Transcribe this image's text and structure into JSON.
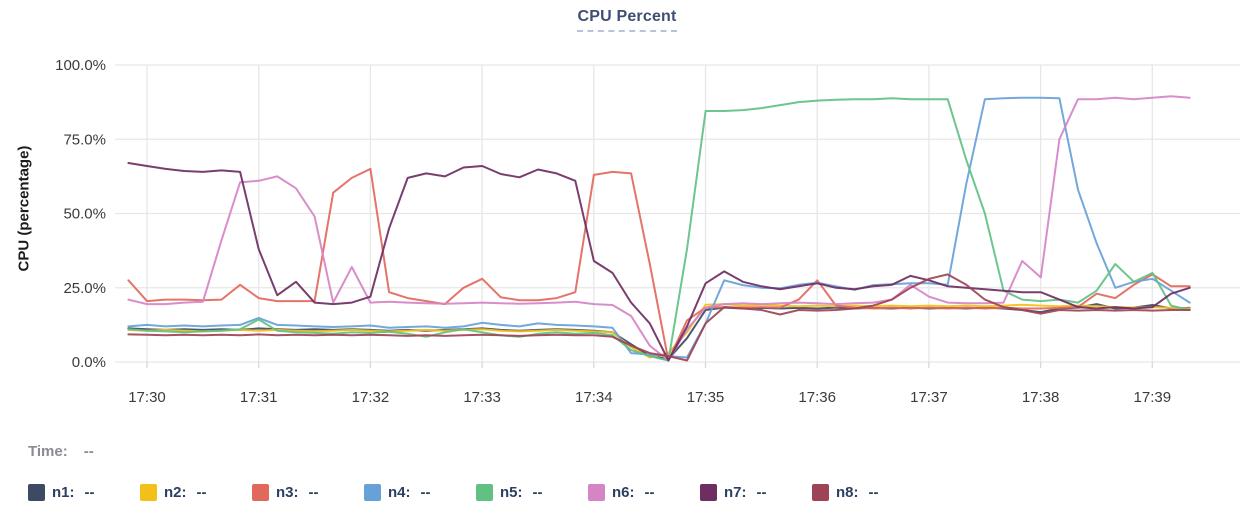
{
  "header": {
    "title": "CPU Percent"
  },
  "time_row": {
    "label": "Time:",
    "value": "--"
  },
  "legend": [
    {
      "id": "n1",
      "label": "n1:",
      "value": "--",
      "color": "#3d4a63"
    },
    {
      "id": "n2",
      "label": "n2:",
      "value": "--",
      "color": "#f2c019"
    },
    {
      "id": "n3",
      "label": "n3:",
      "value": "--",
      "color": "#e2685c"
    },
    {
      "id": "n4",
      "label": "n4:",
      "value": "--",
      "color": "#66a1d8"
    },
    {
      "id": "n5",
      "label": "n5:",
      "value": "--",
      "color": "#60c183"
    },
    {
      "id": "n6",
      "label": "n6:",
      "value": "--",
      "color": "#d584c5"
    },
    {
      "id": "n7",
      "label": "n7:",
      "value": "--",
      "color": "#6e2e62"
    },
    {
      "id": "n8",
      "label": "n8:",
      "value": "--",
      "color": "#9e4355"
    }
  ],
  "chart_data": {
    "type": "line",
    "title": "CPU Percent",
    "ylabel": "CPU (percentage)",
    "ylim": [
      0,
      100
    ],
    "grid": true,
    "legend_position": "bottom",
    "y_ticks": [
      {
        "value": 0,
        "label": "0.0%"
      },
      {
        "value": 25,
        "label": "25.0%"
      },
      {
        "value": 50,
        "label": "50.0%"
      },
      {
        "value": 75,
        "label": "75.0%"
      },
      {
        "value": 100,
        "label": "100.0%"
      }
    ],
    "x_tick_labels": [
      "17:30",
      "17:31",
      "17:32",
      "17:33",
      "17:34",
      "17:35",
      "17:36",
      "17:37",
      "17:38",
      "17:39"
    ],
    "x_start_offset_min": -0.1667,
    "x_step_min": 0.1667,
    "series": [
      {
        "name": "n1",
        "color": "#3d4a63",
        "values": [
          11.3,
          11,
          10.8,
          11,
          10.8,
          11,
          10.8,
          11.3,
          11,
          10.8,
          11,
          10.8,
          11,
          10.8,
          10.5,
          10.8,
          10.5,
          10.8,
          11,
          11.3,
          10.8,
          10.5,
          10.8,
          11,
          10.8,
          10.5,
          10,
          6,
          2,
          1,
          8,
          17.5,
          18.3,
          18,
          18.2,
          18,
          18.2,
          18,
          18.3,
          18,
          18.2,
          18,
          18.3,
          18,
          18.2,
          18,
          18.3,
          18,
          17.5,
          16.8,
          18,
          18.3,
          19.5,
          18,
          18.3,
          19.2,
          18,
          18.2
        ]
      },
      {
        "name": "n2",
        "color": "#f2c019",
        "values": [
          10.8,
          10.5,
          10.8,
          10.5,
          10.3,
          10.5,
          10.8,
          10.5,
          10.8,
          10.5,
          10.3,
          10.5,
          10.8,
          10.5,
          10.3,
          10.5,
          10.8,
          10.5,
          10.8,
          11,
          10.5,
          10.3,
          10.5,
          10.8,
          10.5,
          10.3,
          10,
          5,
          1.5,
          3,
          10,
          19.3,
          19.5,
          19,
          19.3,
          19,
          18.8,
          19,
          18.8,
          19,
          18.8,
          19,
          18.8,
          19,
          18.8,
          19,
          18.8,
          19,
          19.3,
          19,
          18.8,
          19,
          18.8,
          18.5,
          18.3,
          18.5,
          18.2,
          18
        ]
      },
      {
        "name": "n3",
        "color": "#e2685c",
        "values": [
          27.5,
          20.5,
          21,
          21,
          20.8,
          21,
          26,
          21.5,
          20.5,
          20.5,
          20.5,
          57,
          62,
          65,
          23.5,
          21.5,
          20.5,
          19.5,
          25,
          28,
          21.8,
          20.8,
          20.8,
          21.5,
          23.5,
          63,
          64,
          63.5,
          33,
          0.5,
          14,
          18.3,
          18.5,
          18.3,
          18.5,
          18.3,
          21,
          27.5,
          19,
          18.3,
          18,
          18.3,
          18,
          18.3,
          18,
          18.3,
          18,
          18.3,
          18,
          18,
          18.2,
          18.5,
          23,
          21.5,
          26,
          29.5,
          25.5,
          25.5
        ]
      },
      {
        "name": "n4",
        "color": "#66a1d8",
        "values": [
          12,
          12.5,
          12,
          12.3,
          12,
          12.3,
          12.5,
          14.8,
          12.5,
          12.3,
          12,
          11.8,
          12,
          12.3,
          11.5,
          11.8,
          12,
          11.5,
          12,
          13.2,
          12.5,
          12,
          13,
          12.5,
          12.3,
          12,
          11.5,
          3,
          2.5,
          2,
          1.5,
          13,
          27.5,
          25.9,
          25,
          24.8,
          26,
          26.7,
          25.5,
          24.3,
          25.9,
          26.2,
          26.5,
          26.5,
          26,
          60,
          88.5,
          88.8,
          89,
          89,
          88.8,
          58,
          40,
          25,
          27,
          28,
          24,
          20
        ]
      },
      {
        "name": "n5",
        "color": "#60c183",
        "values": [
          11,
          10.5,
          10.3,
          10,
          10.3,
          10.5,
          11,
          14.3,
          10.5,
          10,
          9.8,
          9.5,
          10,
          9.8,
          10.2,
          9.5,
          8.5,
          10,
          11,
          10,
          9,
          8.5,
          9.5,
          10,
          9.5,
          9.8,
          9,
          4,
          2,
          0.5,
          38,
          84.5,
          84.5,
          84.8,
          85.5,
          86.5,
          87.5,
          88,
          88.3,
          88.5,
          88.5,
          88.8,
          88.5,
          88.5,
          88.5,
          68,
          50,
          24,
          21,
          20.5,
          21,
          20,
          24,
          33,
          27,
          30,
          19,
          17.5
        ]
      },
      {
        "name": "n6",
        "color": "#d584c5",
        "values": [
          21,
          19.5,
          19.5,
          20,
          20.3,
          41,
          60.5,
          61,
          62.5,
          58.5,
          49,
          20,
          32,
          20,
          20.3,
          20,
          19.8,
          19.6,
          19.8,
          20,
          19.8,
          19.6,
          19.8,
          20,
          20.3,
          19.5,
          19.2,
          15.5,
          5.5,
          0.5,
          11,
          18.3,
          19.5,
          19.8,
          19.5,
          19.8,
          20,
          19.8,
          19.5,
          19.8,
          20,
          21,
          26,
          22,
          20,
          19.8,
          19.8,
          20,
          34,
          28.5,
          75,
          88.5,
          88.5,
          89,
          88.5,
          89,
          89.5,
          89
        ]
      },
      {
        "name": "n7",
        "color": "#6e2e62",
        "values": [
          67,
          66,
          65,
          64.3,
          64,
          64.5,
          64,
          38,
          22.5,
          27,
          20,
          19.5,
          20,
          22,
          45,
          62,
          63.5,
          62.5,
          65.5,
          66,
          63.3,
          62.2,
          64.8,
          63.5,
          61,
          34,
          30,
          20,
          13,
          0.5,
          12,
          26.5,
          30.5,
          27,
          25.5,
          24.5,
          25.5,
          26.5,
          25,
          24.5,
          25.5,
          26,
          29,
          27.5,
          25.5,
          25,
          24.5,
          24,
          23.5,
          23.5,
          21,
          18.5,
          18,
          18.5,
          18,
          18.5,
          23,
          25
        ]
      },
      {
        "name": "n8",
        "color": "#9e4355",
        "values": [
          9.3,
          9.2,
          9,
          9.2,
          9,
          9.2,
          9,
          9.3,
          9,
          9.2,
          9,
          9.2,
          9,
          9.2,
          9,
          8.8,
          9,
          8.8,
          9,
          9.2,
          9,
          8.8,
          9,
          9.2,
          9,
          9,
          8.5,
          5.5,
          3,
          2,
          0.5,
          13,
          18.5,
          18,
          17.5,
          16,
          17.5,
          17.3,
          17.5,
          18,
          19,
          21,
          25,
          28,
          29.5,
          26,
          21,
          18.5,
          17.5,
          16.3,
          17.5,
          17.3,
          17.5,
          17.3,
          17.5,
          17.3,
          17.5,
          17.5
        ]
      }
    ]
  },
  "style": {
    "grid_color": "#e7e7e7",
    "tick_stub_color": "#d8d8d8",
    "axis_text_color": "#3b3b3b",
    "title_color": "#3f4e75",
    "title_underline_color": "#b8c2da"
  }
}
